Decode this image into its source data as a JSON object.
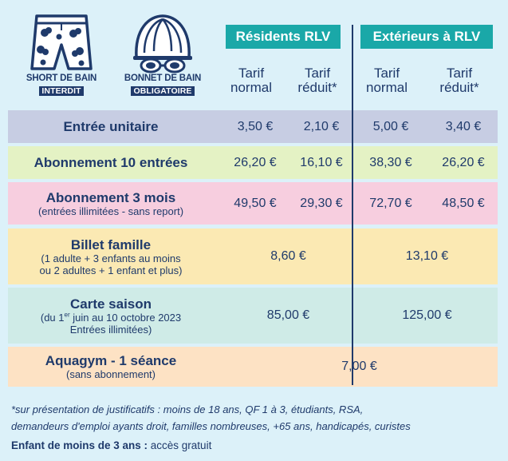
{
  "icons": {
    "short": {
      "line1": "SHORT DE BAIN",
      "line2": "INTERDIT"
    },
    "bonnet": {
      "line1": "BONNET DE BAIN",
      "line2": "OBLIGATOIRE"
    }
  },
  "groups": [
    "Résidents RLV",
    "Extérieurs à RLV"
  ],
  "columns": [
    {
      "line1": "Tarif",
      "line2": "normal"
    },
    {
      "line1": "Tarif",
      "line2": "réduit*"
    },
    {
      "line1": "Tarif",
      "line2": "normal"
    },
    {
      "line1": "Tarif",
      "line2": "réduit*"
    }
  ],
  "colors": {
    "entree_unitaire": "#c7cde3",
    "abonnement_10": "#e4f2c4",
    "abonnement_3mois": "#f7cedf",
    "billet_famille": "#fbe9b3",
    "carte_saison": "#cfebe7",
    "aquagym": "#fde2c4",
    "header": "#1aa8a8",
    "text": "#1f3a6b"
  },
  "rows": {
    "entree_unitaire": {
      "label": "Entrée unitaire",
      "prices": [
        "3,50 €",
        "2,10 €",
        "5,00 €",
        "3,40 €"
      ]
    },
    "abonnement_10": {
      "label": "Abonnement 10 entrées",
      "prices": [
        "26,20 €",
        "16,10 €",
        "38,30 €",
        "26,20 €"
      ]
    },
    "abonnement_3mois": {
      "label": "Abonnement 3 mois",
      "sub": "(entrées illimitées - sans report)",
      "prices": [
        "49,50 €",
        "29,30 €",
        "72,70 €",
        "48,50 €"
      ]
    },
    "billet_famille": {
      "label": "Billet famille",
      "sub1": "(1 adulte + 3 enfants au moins",
      "sub2": "ou 2 adultes + 1 enfant et plus)",
      "residents": "8,60 €",
      "exterieurs": "13,10 €"
    },
    "carte_saison": {
      "label": "Carte saison",
      "sub1_pre": "(du 1",
      "sub1_sup": "er",
      "sub1_post": " juin au 10 octobre 2023",
      "sub2": "Entrées illimitées)",
      "residents": "85,00 €",
      "exterieurs": "125,00 €"
    },
    "aquagym": {
      "label": "Aquagym - 1 séance",
      "sub": "(sans abonnement)",
      "price": "7,00 €"
    }
  },
  "footnote": {
    "line1": "*sur présentation de justificatifs : moins de 18 ans, QF 1 à 3, étudiants, RSA,",
    "line2": "demandeurs d'emploi ayants droit, familles nombreuses, +65 ans, handicapés, curistes"
  },
  "free_kids": {
    "bold": "Enfant de moins de 3 ans :",
    "rest": " accès gratuit"
  }
}
